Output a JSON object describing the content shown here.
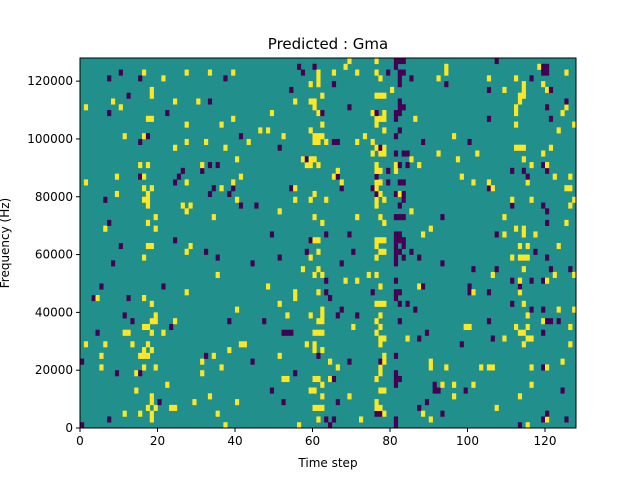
{
  "chart_data": {
    "type": "heatmap",
    "title": "Predicted : Gma",
    "xlabel": "Time step",
    "ylabel": "Frequency (Hz)",
    "xlim": [
      0,
      128
    ],
    "ylim": [
      0,
      128000
    ],
    "x_ticks": [
      0,
      20,
      40,
      60,
      80,
      100,
      120
    ],
    "y_ticks": [
      0,
      20000,
      40000,
      60000,
      80000,
      100000,
      120000
    ],
    "y_tick_labels": [
      "0",
      "20000",
      "40000",
      "60000",
      "80000",
      "100000",
      "120000"
    ],
    "grid": false,
    "colormap": "viridis",
    "colors": {
      "background": "#21908d",
      "high": "#fde725",
      "low": "#440154"
    },
    "rows": 64,
    "cols": 128,
    "cell_values": "mostly middle value (teal) with scattered high (yellow) and low (purple) cells; high values concentrated near time steps 16-19, 59-62, 76-78, 113-116; low values concentrated near time steps 81-83 and 119-121"
  }
}
